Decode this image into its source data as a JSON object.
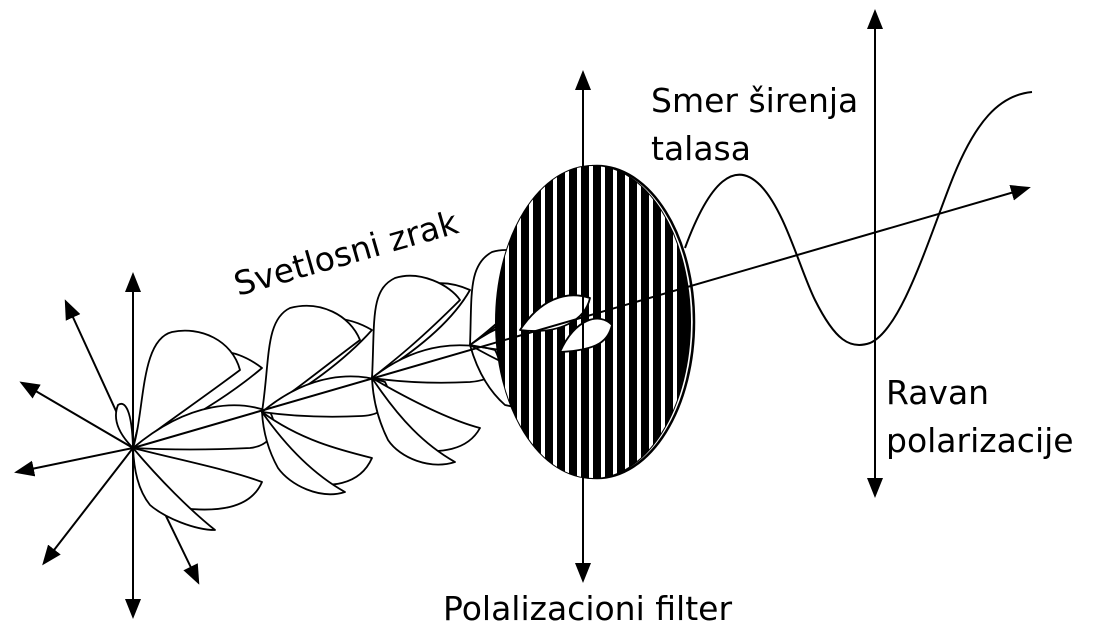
{
  "labels": {
    "light_ray": "Svetlosni zrak",
    "propagation_line1": "Smer širenja",
    "propagation_line2": "talasa",
    "plane_line1": "Ravan",
    "plane_line2": "polarizacije",
    "filter": "Polalizacioni filter"
  },
  "colors": {
    "stroke": "#000000",
    "background": "#ffffff"
  }
}
